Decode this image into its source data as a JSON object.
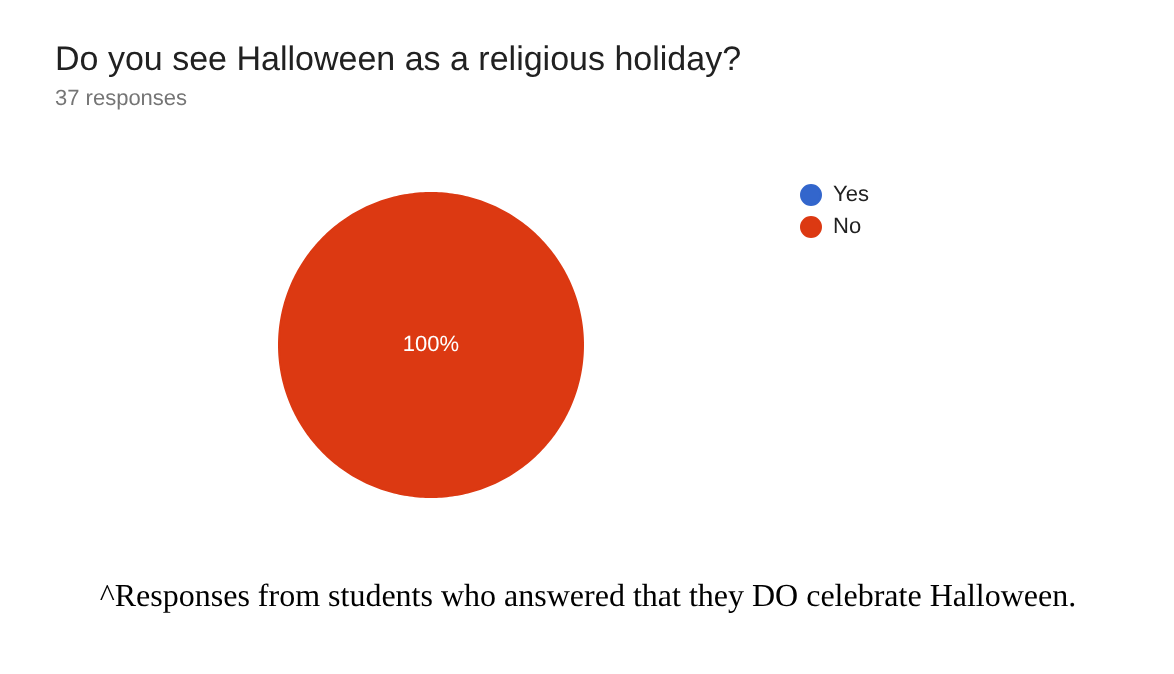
{
  "chart_data": {
    "type": "pie",
    "title": "Do you see Halloween as a religious holiday?",
    "subtitle": "37 responses",
    "categories": [
      "Yes",
      "No"
    ],
    "values": [
      0,
      100
    ],
    "colors": [
      "#3366cc",
      "#dc3912"
    ],
    "value_labels": [
      null,
      "100%"
    ],
    "legend": "top right",
    "annotations": [
      "^Responses from students who answered that they DO celebrate Halloween."
    ]
  }
}
